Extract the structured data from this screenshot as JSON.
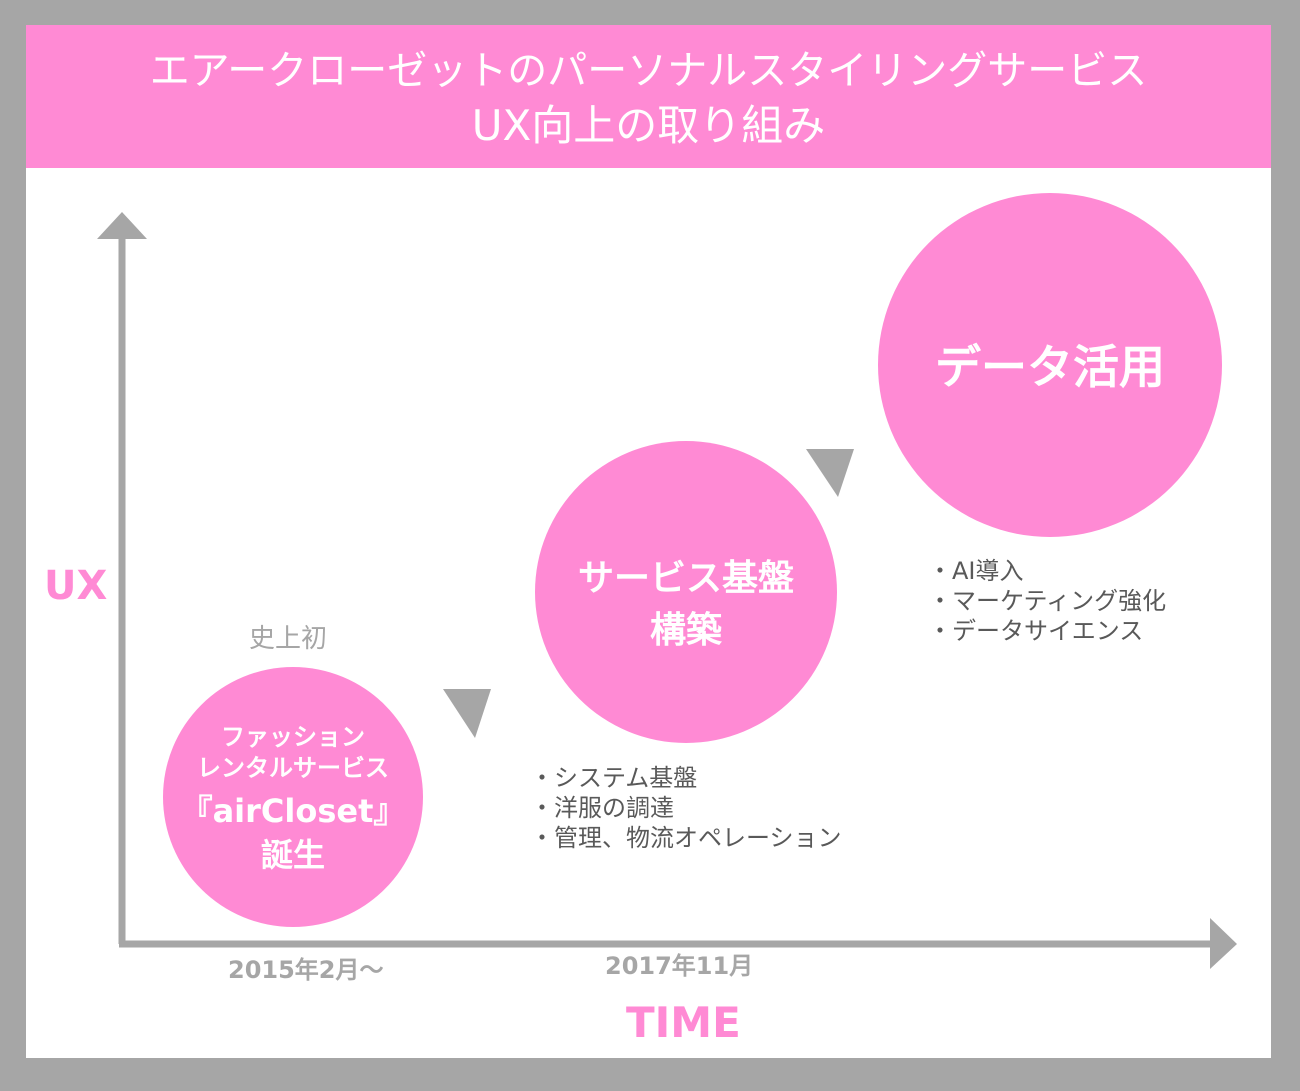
{
  "header": {
    "line1": "エアークローゼットのパーソナルスタイリングサービス",
    "line2": "UX向上の取り組み"
  },
  "axes": {
    "y_label": "UX",
    "x_label": "TIME"
  },
  "stages": [
    {
      "caption": "史上初",
      "lines": [
        "ファッション",
        "レンタルサービス",
        "『airCloset』",
        "誕生"
      ],
      "date": "2015年2月～"
    },
    {
      "lines": [
        "サービス基盤",
        "構築"
      ],
      "date": "2017年11月",
      "bullets": [
        "・システム基盤",
        "・洋服の調達",
        "・管理、物流オペレーション"
      ]
    },
    {
      "lines": [
        "データ活用"
      ],
      "bullets": [
        "・AI導入",
        "・マーケティング強化",
        "・データサイエンス"
      ]
    }
  ],
  "colors": {
    "accent": "#ff8ad4",
    "axis": "#a6a6a6",
    "background": "#a6a6a6",
    "text": "#595959"
  }
}
